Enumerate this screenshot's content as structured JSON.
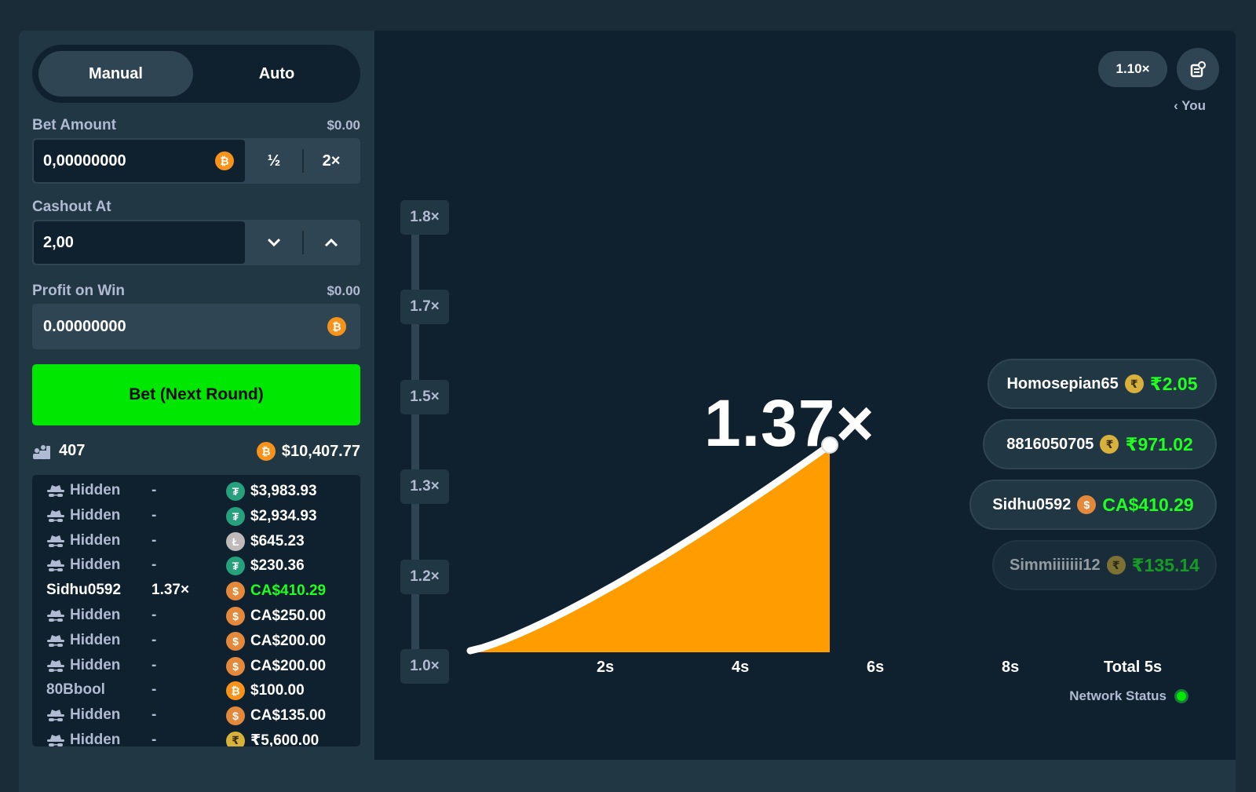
{
  "sidebar": {
    "tabs": {
      "manual": "Manual",
      "auto": "Auto"
    },
    "bet_amount": {
      "label": "Bet Amount",
      "usd": "$0.00",
      "value": "0,00000000",
      "half": "½",
      "double": "2×"
    },
    "cashout_at": {
      "label": "Cashout At",
      "value": "2,00"
    },
    "profit_on_win": {
      "label": "Profit on Win",
      "usd": "$0.00",
      "value": "0.00000000"
    },
    "bet_button": "Bet (Next Round)",
    "stats": {
      "players": "407",
      "total": "$10,407.77"
    },
    "bets": [
      {
        "user": "Hidden",
        "hidden": true,
        "mult": "-",
        "coin": "usdt",
        "amount": "$3,983.93",
        "win": false
      },
      {
        "user": "Hidden",
        "hidden": true,
        "mult": "-",
        "coin": "usdt",
        "amount": "$2,934.93",
        "win": false
      },
      {
        "user": "Hidden",
        "hidden": true,
        "mult": "-",
        "coin": "ltc",
        "amount": "$645.23",
        "win": false
      },
      {
        "user": "Hidden",
        "hidden": true,
        "mult": "-",
        "coin": "usdt",
        "amount": "$230.36",
        "win": false
      },
      {
        "user": "Sidhu0592",
        "hidden": false,
        "mult": "1.37×",
        "coin": "cad",
        "amount": "CA$410.29",
        "win": true
      },
      {
        "user": "Hidden",
        "hidden": true,
        "mult": "-",
        "coin": "cad",
        "amount": "CA$250.00",
        "win": false
      },
      {
        "user": "Hidden",
        "hidden": true,
        "mult": "-",
        "coin": "cad",
        "amount": "CA$200.00",
        "win": false
      },
      {
        "user": "Hidden",
        "hidden": true,
        "mult": "-",
        "coin": "cad",
        "amount": "CA$200.00",
        "win": false
      },
      {
        "user": "80Bbool",
        "hidden": false,
        "mult": "-",
        "coin": "btc",
        "amount": "$100.00",
        "win": false
      },
      {
        "user": "Hidden",
        "hidden": true,
        "mult": "-",
        "coin": "cad",
        "amount": "CA$135.00",
        "win": false
      },
      {
        "user": "Hidden",
        "hidden": true,
        "mult": "-",
        "coin": "inr",
        "amount": "₹5,600.00",
        "win": false
      }
    ]
  },
  "coins": {
    "btc": "₿",
    "usdt": "₮",
    "ltc": "Ł",
    "cad": "$",
    "inr": "₹"
  },
  "game": {
    "last_multiplier": "1.10×",
    "you_label": "You",
    "current_multiplier": "1.37×",
    "y_axis": [
      "1.8×",
      "1.7×",
      "1.5×",
      "1.3×",
      "1.2×",
      "1.0×"
    ],
    "x_axis": [
      "2s",
      "4s",
      "6s",
      "8s"
    ],
    "total_label": "Total 5s",
    "network_status": "Network Status",
    "cashouts": [
      {
        "user": "Homosepian65",
        "coin": "inr",
        "amount": "₹2.05",
        "faded": false
      },
      {
        "user": "8816050705",
        "coin": "inr",
        "amount": "₹971.02",
        "faded": false
      },
      {
        "user": "Sidhu0592",
        "coin": "cad",
        "amount": "CA$410.29",
        "faded": false
      },
      {
        "user": "Simmiiiiiii12",
        "coin": "inr",
        "amount": "₹135.14",
        "faded": true
      }
    ]
  },
  "colors": {
    "accent_green": "#00e701",
    "curve_fill": "#ff9d00",
    "bg_dark": "#0f212e",
    "panel": "#213743"
  }
}
